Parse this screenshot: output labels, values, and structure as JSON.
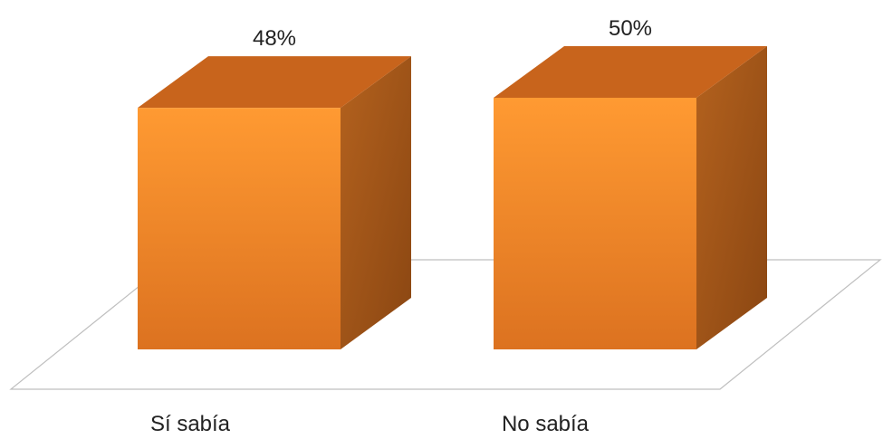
{
  "chart_data": {
    "type": "bar",
    "categories": [
      "Sí sabía",
      "No sabía"
    ],
    "values": [
      48,
      50
    ],
    "data_labels": [
      "48%",
      "50%"
    ],
    "title": "",
    "xlabel": "",
    "ylabel": "",
    "ylim": [
      0,
      50
    ],
    "grid": false,
    "legend": "none",
    "style": "3d-column",
    "colors": {
      "front_top": "#ff9a32",
      "front_bottom": "#dc7220",
      "top_face": "#c8641c",
      "side_dark": "#8a4612",
      "side_light": "#b4621e",
      "floor_stroke": "#bfbfbf"
    }
  }
}
